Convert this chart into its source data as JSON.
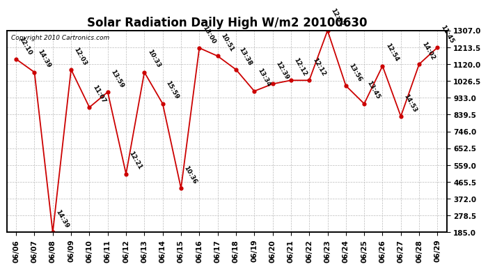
{
  "title": "Solar Radiation Daily High W/m2 20100630",
  "copyright": "Copyright 2010 Cartronics.com",
  "dates": [
    "06/06",
    "06/07",
    "06/08",
    "06/09",
    "06/10",
    "06/11",
    "06/12",
    "06/13",
    "06/14",
    "06/15",
    "06/16",
    "06/17",
    "06/18",
    "06/19",
    "06/20",
    "06/21",
    "06/22",
    "06/23",
    "06/24",
    "06/25",
    "06/26",
    "06/27",
    "06/28",
    "06/29"
  ],
  "values": [
    1148,
    1075,
    185,
    1090,
    880,
    965,
    510,
    1075,
    900,
    430,
    1210,
    1165,
    1090,
    970,
    1010,
    1030,
    1030,
    1307,
    1000,
    900,
    1110,
    830,
    1120,
    1213
  ],
  "labels": [
    "12:10",
    "14:39",
    "14:39",
    "12:03",
    "11:07",
    "13:59",
    "12:21",
    "10:33",
    "15:59",
    "10:36",
    "13:00",
    "10:51",
    "13:38",
    "13:34",
    "12:39",
    "12:12",
    "12:12",
    "12:12",
    "13:56",
    "13:45",
    "12:54",
    "14:53",
    "14:02",
    "11:45"
  ],
  "line_color": "#cc0000",
  "marker_color": "#cc0000",
  "bg_color": "#ffffff",
  "grid_color": "#bbbbbb",
  "yticks": [
    185.0,
    278.5,
    372.0,
    465.5,
    559.0,
    652.5,
    746.0,
    839.5,
    933.0,
    1026.5,
    1120.0,
    1213.5,
    1307.0
  ],
  "title_fontsize": 12,
  "label_fontsize": 7,
  "tick_fontsize": 7.5,
  "annot_fontsize": 6.5
}
